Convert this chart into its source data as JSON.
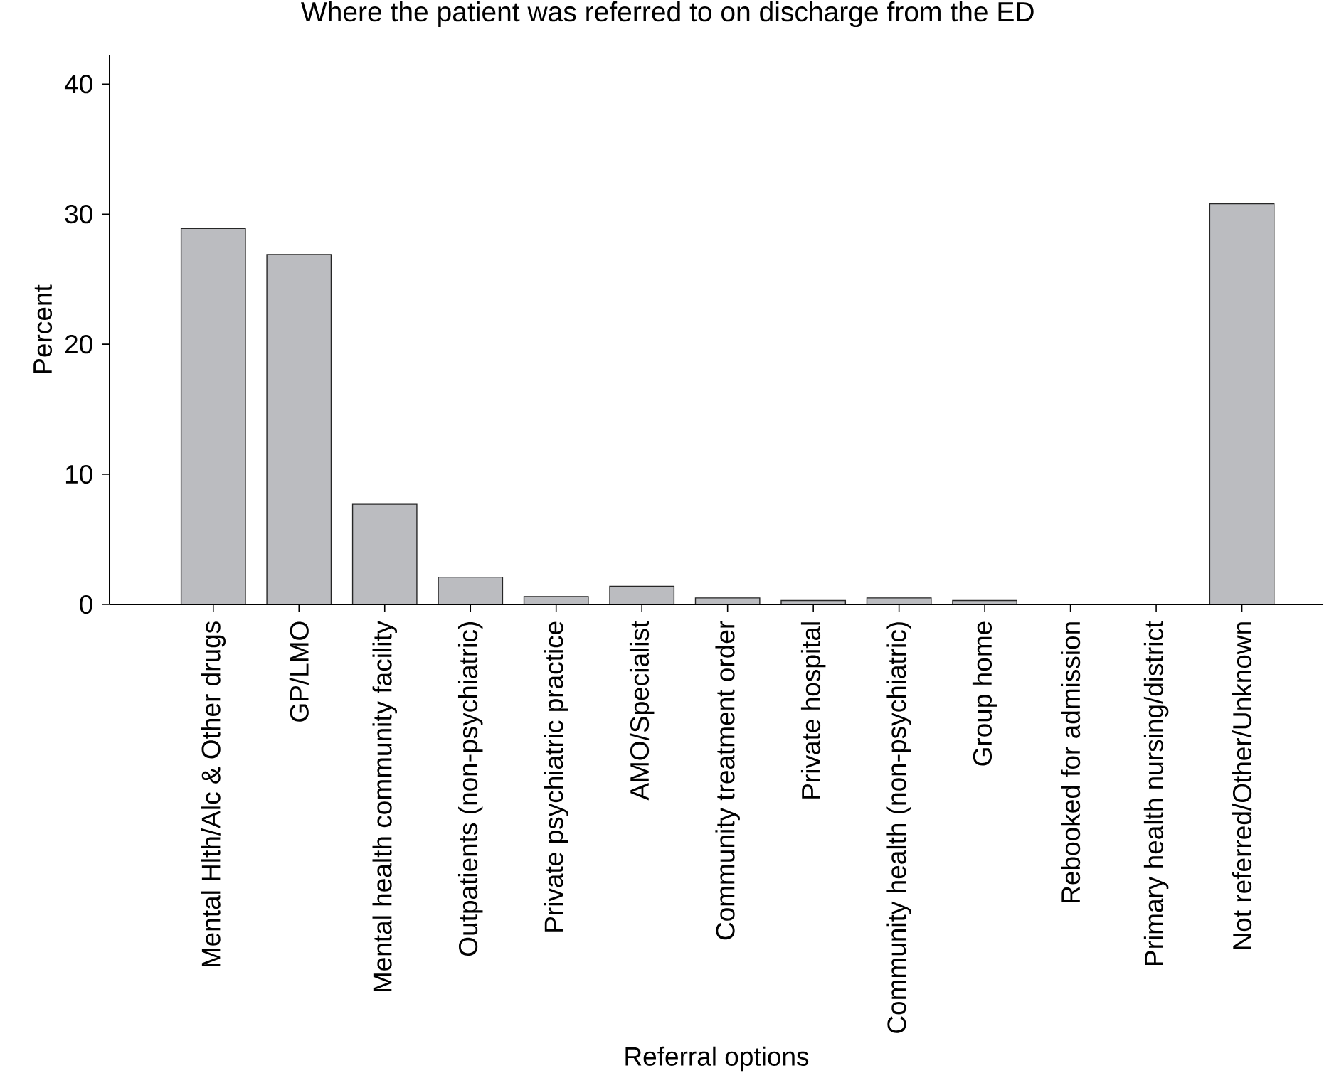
{
  "chart_data": {
    "type": "bar",
    "title": "Where the patient was referred to on discharge from the ED",
    "xlabel": "Referral options",
    "ylabel": "Percent",
    "categories": [
      "Mental Hlth/Alc & Other drugs",
      "GP/LMO",
      "Mental health community facility",
      "Outpatients (non-psychiatric)",
      "Private psychiatric practice",
      "AMO/Specialist",
      "Community treatment order",
      "Private hospital",
      "Community health (non-psychiatric)",
      "Group home",
      "Rebooked for admission",
      "Primary health nursing/district",
      "Not referred/Other/Unknown"
    ],
    "values": [
      28.9,
      26.9,
      7.7,
      2.1,
      0.6,
      1.4,
      0.5,
      0.3,
      0.5,
      0.3,
      0,
      0,
      30.8
    ],
    "color": "#bbbcc0",
    "ylim": [
      0,
      42.2
    ],
    "yticks": [
      0,
      10,
      20,
      30,
      40
    ],
    "grid": false
  }
}
